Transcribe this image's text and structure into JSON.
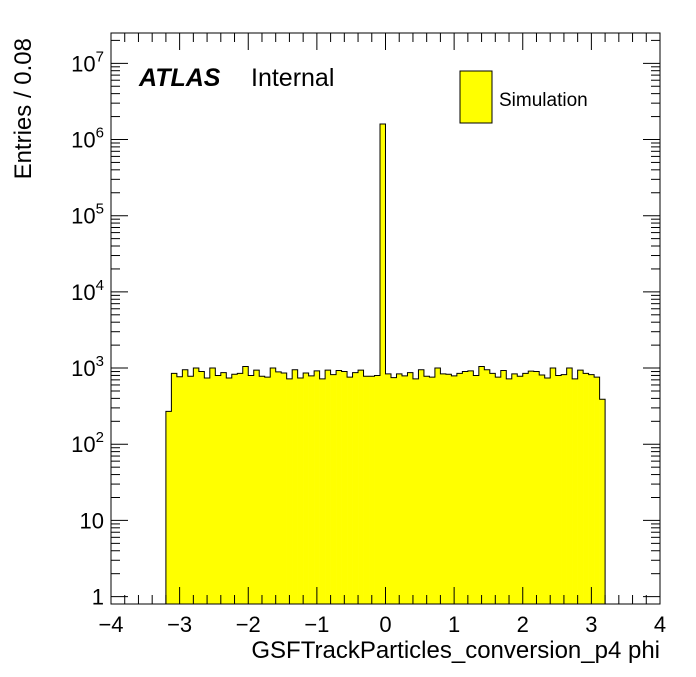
{
  "chart_data": {
    "type": "bar",
    "title": "",
    "xlabel": "GSFTrackParticles_conversion_p4 phi",
    "ylabel": "Entries / 0.08",
    "xlim": [
      -4,
      4
    ],
    "ylim": [
      0.8,
      25000000
    ],
    "y_scale": "log",
    "bin_width": 0.08,
    "grid": false,
    "legend_position": "top-right",
    "atlas_label": "ATLAS",
    "status_label": "Internal",
    "x_ticks": [
      {
        "value": -4,
        "label": "−4"
      },
      {
        "value": -3,
        "label": "−3"
      },
      {
        "value": -2,
        "label": "−2"
      },
      {
        "value": -1,
        "label": "−1"
      },
      {
        "value": 0,
        "label": "0"
      },
      {
        "value": 1,
        "label": "1"
      },
      {
        "value": 2,
        "label": "2"
      },
      {
        "value": 3,
        "label": "3"
      },
      {
        "value": 4,
        "label": "4"
      }
    ],
    "y_ticks": [
      {
        "value": 1,
        "base": "1",
        "exp": ""
      },
      {
        "value": 10,
        "base": "10",
        "exp": ""
      },
      {
        "value": 100,
        "base": "10",
        "exp": "2"
      },
      {
        "value": 1000,
        "base": "10",
        "exp": "3"
      },
      {
        "value": 10000,
        "base": "10",
        "exp": "4"
      },
      {
        "value": 100000,
        "base": "10",
        "exp": "5"
      },
      {
        "value": 1000000,
        "base": "10",
        "exp": "6"
      },
      {
        "value": 10000000,
        "base": "10",
        "exp": "7"
      }
    ],
    "series": [
      {
        "name": "Simulation",
        "color": "#ffff00",
        "edges": [
          -3.2,
          -3.12,
          -3.04,
          -2.96,
          -2.88,
          -2.8,
          -2.72,
          -2.64,
          -2.56,
          -2.48,
          -2.4,
          -2.32,
          -2.24,
          -2.16,
          -2.08,
          -2.0,
          -1.92,
          -1.84,
          -1.76,
          -1.68,
          -1.6,
          -1.52,
          -1.44,
          -1.36,
          -1.28,
          -1.2,
          -1.12,
          -1.04,
          -0.96,
          -0.88,
          -0.8,
          -0.72,
          -0.64,
          -0.56,
          -0.48,
          -0.4,
          -0.32,
          -0.24,
          -0.16,
          -0.08,
          0.0,
          0.08,
          0.16,
          0.24,
          0.32,
          0.4,
          0.48,
          0.56,
          0.64,
          0.72,
          0.8,
          0.88,
          0.96,
          1.04,
          1.12,
          1.2,
          1.28,
          1.36,
          1.44,
          1.52,
          1.6,
          1.68,
          1.76,
          1.84,
          1.92,
          2.0,
          2.08,
          2.16,
          2.24,
          2.32,
          2.4,
          2.48,
          2.56,
          2.64,
          2.72,
          2.8,
          2.88,
          2.96,
          3.04,
          3.12,
          3.2
        ],
        "values": [
          270,
          850,
          770,
          950,
          780,
          1000,
          900,
          740,
          1000,
          800,
          870,
          740,
          830,
          850,
          1050,
          800,
          940,
          780,
          760,
          1000,
          890,
          860,
          720,
          950,
          740,
          860,
          790,
          920,
          720,
          940,
          820,
          930,
          900,
          760,
          870,
          940,
          780,
          780,
          800,
          1600000,
          840,
          750,
          840,
          790,
          870,
          720,
          950,
          780,
          760,
          1000,
          840,
          830,
          790,
          850,
          900,
          920,
          800,
          1050,
          950,
          850,
          760,
          930,
          720,
          840,
          780,
          850,
          910,
          900,
          810,
          740,
          1000,
          800,
          820,
          1000,
          720,
          940,
          850,
          820,
          760,
          390
        ]
      }
    ]
  }
}
